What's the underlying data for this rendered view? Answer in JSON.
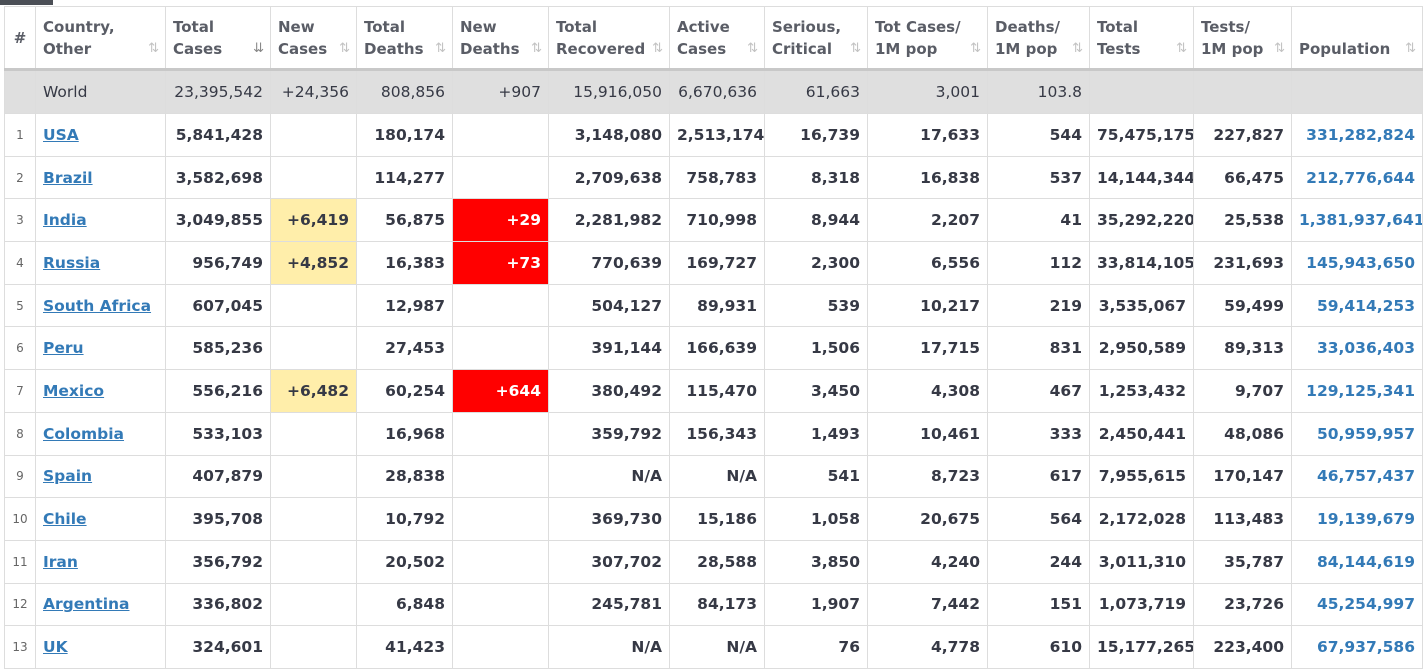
{
  "headers": [
    {
      "l1": "#",
      "l2": ""
    },
    {
      "l1": "Country,",
      "l2": "Other"
    },
    {
      "l1": "Total",
      "l2": "Cases"
    },
    {
      "l1": "New",
      "l2": "Cases"
    },
    {
      "l1": "Total",
      "l2": "Deaths"
    },
    {
      "l1": "New",
      "l2": "Deaths"
    },
    {
      "l1": "Total",
      "l2": "Recovered"
    },
    {
      "l1": "Active",
      "l2": "Cases"
    },
    {
      "l1": "Serious,",
      "l2": "Critical"
    },
    {
      "l1": "Tot Cases/",
      "l2": "1M pop"
    },
    {
      "l1": "Deaths/",
      "l2": "1M pop"
    },
    {
      "l1": "Total",
      "l2": "Tests"
    },
    {
      "l1": "Tests/",
      "l2": "1M pop"
    },
    {
      "l1": "Population",
      "l2": ""
    }
  ],
  "sort_icon": "⇅",
  "sort_active_icon": "⇊",
  "world": {
    "name": "World",
    "total_cases": "23,395,542",
    "new_cases": "+24,356",
    "total_deaths": "808,856",
    "new_deaths": "+907",
    "total_recovered": "15,916,050",
    "active_cases": "6,670,636",
    "serious": "61,663",
    "cases_per_1m": "3,001",
    "deaths_per_1m": "103.8",
    "total_tests": "",
    "tests_per_1m": "",
    "population": ""
  },
  "rows": [
    {
      "idx": "1",
      "country": "USA",
      "total_cases": "5,841,428",
      "new_cases": "",
      "total_deaths": "180,174",
      "new_deaths": "",
      "total_recovered": "3,148,080",
      "active_cases": "2,513,174",
      "serious": "16,739",
      "cases_per_1m": "17,633",
      "deaths_per_1m": "544",
      "total_tests": "75,475,175",
      "tests_per_1m": "227,827",
      "population": "331,282,824"
    },
    {
      "idx": "2",
      "country": "Brazil",
      "total_cases": "3,582,698",
      "new_cases": "",
      "total_deaths": "114,277",
      "new_deaths": "",
      "total_recovered": "2,709,638",
      "active_cases": "758,783",
      "serious": "8,318",
      "cases_per_1m": "16,838",
      "deaths_per_1m": "537",
      "total_tests": "14,144,344",
      "tests_per_1m": "66,475",
      "population": "212,776,644"
    },
    {
      "idx": "3",
      "country": "India",
      "total_cases": "3,049,855",
      "new_cases": "+6,419",
      "total_deaths": "56,875",
      "new_deaths": "+29",
      "total_recovered": "2,281,982",
      "active_cases": "710,998",
      "serious": "8,944",
      "cases_per_1m": "2,207",
      "deaths_per_1m": "41",
      "total_tests": "35,292,220",
      "tests_per_1m": "25,538",
      "population": "1,381,937,641"
    },
    {
      "idx": "4",
      "country": "Russia",
      "total_cases": "956,749",
      "new_cases": "+4,852",
      "total_deaths": "16,383",
      "new_deaths": "+73",
      "total_recovered": "770,639",
      "active_cases": "169,727",
      "serious": "2,300",
      "cases_per_1m": "6,556",
      "deaths_per_1m": "112",
      "total_tests": "33,814,105",
      "tests_per_1m": "231,693",
      "population": "145,943,650"
    },
    {
      "idx": "5",
      "country": "South Africa",
      "total_cases": "607,045",
      "new_cases": "",
      "total_deaths": "12,987",
      "new_deaths": "",
      "total_recovered": "504,127",
      "active_cases": "89,931",
      "serious": "539",
      "cases_per_1m": "10,217",
      "deaths_per_1m": "219",
      "total_tests": "3,535,067",
      "tests_per_1m": "59,499",
      "population": "59,414,253"
    },
    {
      "idx": "6",
      "country": "Peru",
      "total_cases": "585,236",
      "new_cases": "",
      "total_deaths": "27,453",
      "new_deaths": "",
      "total_recovered": "391,144",
      "active_cases": "166,639",
      "serious": "1,506",
      "cases_per_1m": "17,715",
      "deaths_per_1m": "831",
      "total_tests": "2,950,589",
      "tests_per_1m": "89,313",
      "population": "33,036,403"
    },
    {
      "idx": "7",
      "country": "Mexico",
      "total_cases": "556,216",
      "new_cases": "+6,482",
      "total_deaths": "60,254",
      "new_deaths": "+644",
      "total_recovered": "380,492",
      "active_cases": "115,470",
      "serious": "3,450",
      "cases_per_1m": "4,308",
      "deaths_per_1m": "467",
      "total_tests": "1,253,432",
      "tests_per_1m": "9,707",
      "population": "129,125,341"
    },
    {
      "idx": "8",
      "country": "Colombia",
      "total_cases": "533,103",
      "new_cases": "",
      "total_deaths": "16,968",
      "new_deaths": "",
      "total_recovered": "359,792",
      "active_cases": "156,343",
      "serious": "1,493",
      "cases_per_1m": "10,461",
      "deaths_per_1m": "333",
      "total_tests": "2,450,441",
      "tests_per_1m": "48,086",
      "population": "50,959,957"
    },
    {
      "idx": "9",
      "country": "Spain",
      "total_cases": "407,879",
      "new_cases": "",
      "total_deaths": "28,838",
      "new_deaths": "",
      "total_recovered": "N/A",
      "active_cases": "N/A",
      "serious": "541",
      "cases_per_1m": "8,723",
      "deaths_per_1m": "617",
      "total_tests": "7,955,615",
      "tests_per_1m": "170,147",
      "population": "46,757,437"
    },
    {
      "idx": "10",
      "country": "Chile",
      "total_cases": "395,708",
      "new_cases": "",
      "total_deaths": "10,792",
      "new_deaths": "",
      "total_recovered": "369,730",
      "active_cases": "15,186",
      "serious": "1,058",
      "cases_per_1m": "20,675",
      "deaths_per_1m": "564",
      "total_tests": "2,172,028",
      "tests_per_1m": "113,483",
      "population": "19,139,679"
    },
    {
      "idx": "11",
      "country": "Iran",
      "total_cases": "356,792",
      "new_cases": "",
      "total_deaths": "20,502",
      "new_deaths": "",
      "total_recovered": "307,702",
      "active_cases": "28,588",
      "serious": "3,850",
      "cases_per_1m": "4,240",
      "deaths_per_1m": "244",
      "total_tests": "3,011,310",
      "tests_per_1m": "35,787",
      "population": "84,144,619"
    },
    {
      "idx": "12",
      "country": "Argentina",
      "total_cases": "336,802",
      "new_cases": "",
      "total_deaths": "6,848",
      "new_deaths": "",
      "total_recovered": "245,781",
      "active_cases": "84,173",
      "serious": "1,907",
      "cases_per_1m": "7,442",
      "deaths_per_1m": "151",
      "total_tests": "1,073,719",
      "tests_per_1m": "23,726",
      "population": "45,254,997"
    },
    {
      "idx": "13",
      "country": "UK",
      "total_cases": "324,601",
      "new_cases": "",
      "total_deaths": "41,423",
      "new_deaths": "",
      "total_recovered": "N/A",
      "active_cases": "N/A",
      "serious": "76",
      "cases_per_1m": "4,778",
      "deaths_per_1m": "610",
      "total_tests": "15,177,265",
      "tests_per_1m": "223,400",
      "population": "67,937,586"
    }
  ],
  "colors": {
    "new_cases_highlight": "#ffeeaa",
    "new_deaths_highlight": "#ff0000",
    "link": "#337ab7",
    "world_row_bg": "#dfdfdf"
  }
}
